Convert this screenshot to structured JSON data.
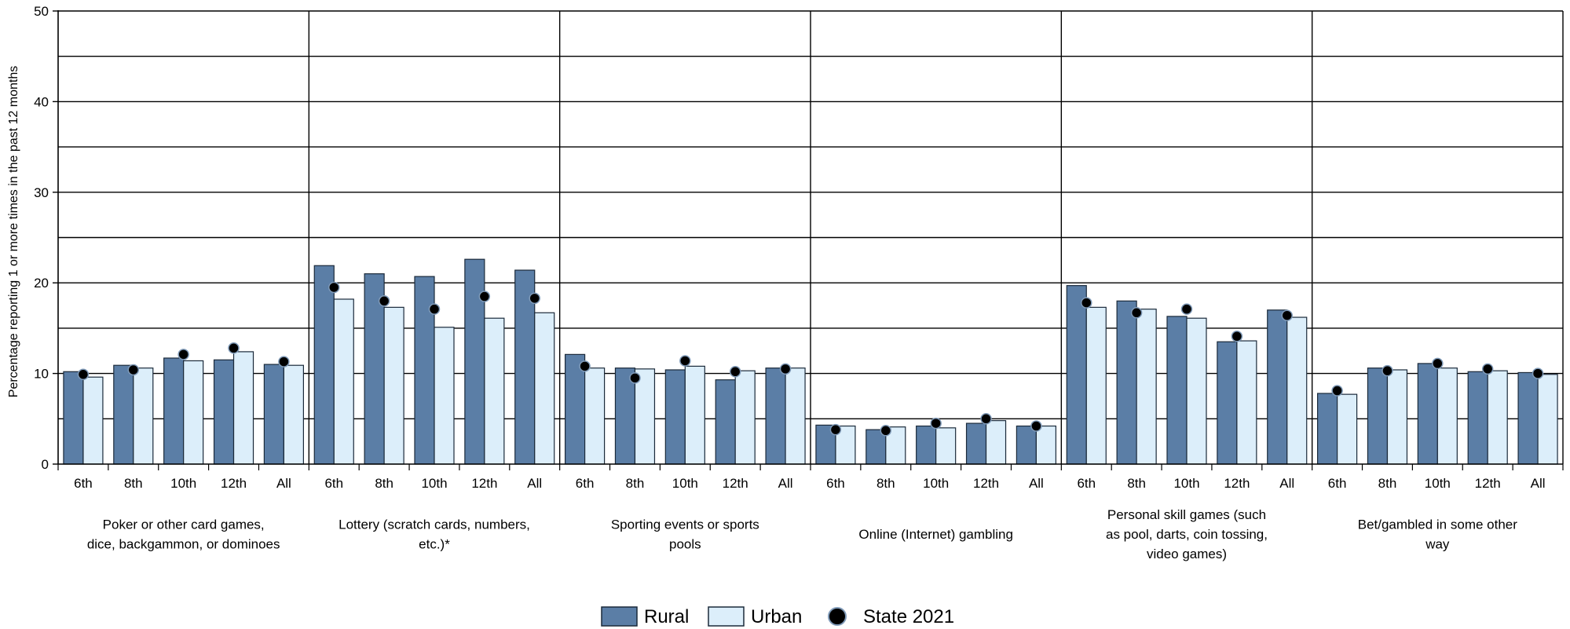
{
  "colors": {
    "rural": "#5b7ea6",
    "urban": "#dceefa",
    "state": "#000000",
    "edge": "#1b2a3a"
  },
  "chart_data": {
    "type": "bar",
    "ylabel": "Percentage reporting 1 or more times in the past 12 months",
    "ylim": [
      0,
      50
    ],
    "yticks": [
      "0",
      "10",
      "20",
      "30",
      "40",
      "50"
    ],
    "grid": true,
    "legend_position": "bottom-center",
    "legend": [
      "Rural",
      "Urban",
      "State 2021"
    ],
    "subcategories": [
      "6th",
      "8th",
      "10th",
      "12th",
      "All"
    ],
    "groups": [
      {
        "label_lines": [
          "Poker or other card games,",
          "dice, backgammon, or dominoes"
        ],
        "rural": [
          10.2,
          10.9,
          11.7,
          11.5,
          11.0
        ],
        "urban": [
          9.6,
          10.6,
          11.4,
          12.4,
          10.9
        ],
        "state": [
          9.9,
          10.4,
          12.1,
          12.8,
          11.3
        ]
      },
      {
        "label_lines": [
          "Lottery (scratch cards, numbers,",
          "etc.)*"
        ],
        "rural": [
          21.9,
          21.0,
          20.7,
          22.6,
          21.4
        ],
        "urban": [
          18.2,
          17.3,
          15.1,
          16.1,
          16.7
        ],
        "state": [
          19.5,
          18.0,
          17.1,
          18.5,
          18.3
        ]
      },
      {
        "label_lines": [
          "Sporting events or sports",
          "pools"
        ],
        "rural": [
          12.1,
          10.6,
          10.4,
          9.3,
          10.6
        ],
        "urban": [
          10.6,
          10.5,
          10.8,
          10.3,
          10.6
        ],
        "state": [
          10.8,
          9.5,
          11.4,
          10.2,
          10.5
        ]
      },
      {
        "label_lines": [
          "Online (Internet) gambling"
        ],
        "rural": [
          4.3,
          3.8,
          4.2,
          4.5,
          4.2
        ],
        "urban": [
          4.2,
          4.1,
          4.0,
          4.8,
          4.2
        ],
        "state": [
          3.8,
          3.7,
          4.5,
          5.0,
          4.2
        ]
      },
      {
        "label_lines": [
          "Personal skill games (such",
          "as pool, darts, coin tossing,",
          "video games)"
        ],
        "rural": [
          19.7,
          18.0,
          16.3,
          13.5,
          17.0
        ],
        "urban": [
          17.3,
          17.1,
          16.1,
          13.6,
          16.2
        ],
        "state": [
          17.8,
          16.7,
          17.1,
          14.1,
          16.4
        ]
      },
      {
        "label_lines": [
          "Bet/gambled in some other",
          "way"
        ],
        "rural": [
          7.8,
          10.6,
          11.1,
          10.2,
          10.1
        ],
        "urban": [
          7.7,
          10.4,
          10.6,
          10.3,
          9.9
        ],
        "state": [
          8.1,
          10.3,
          11.1,
          10.5,
          10.0
        ]
      }
    ]
  }
}
